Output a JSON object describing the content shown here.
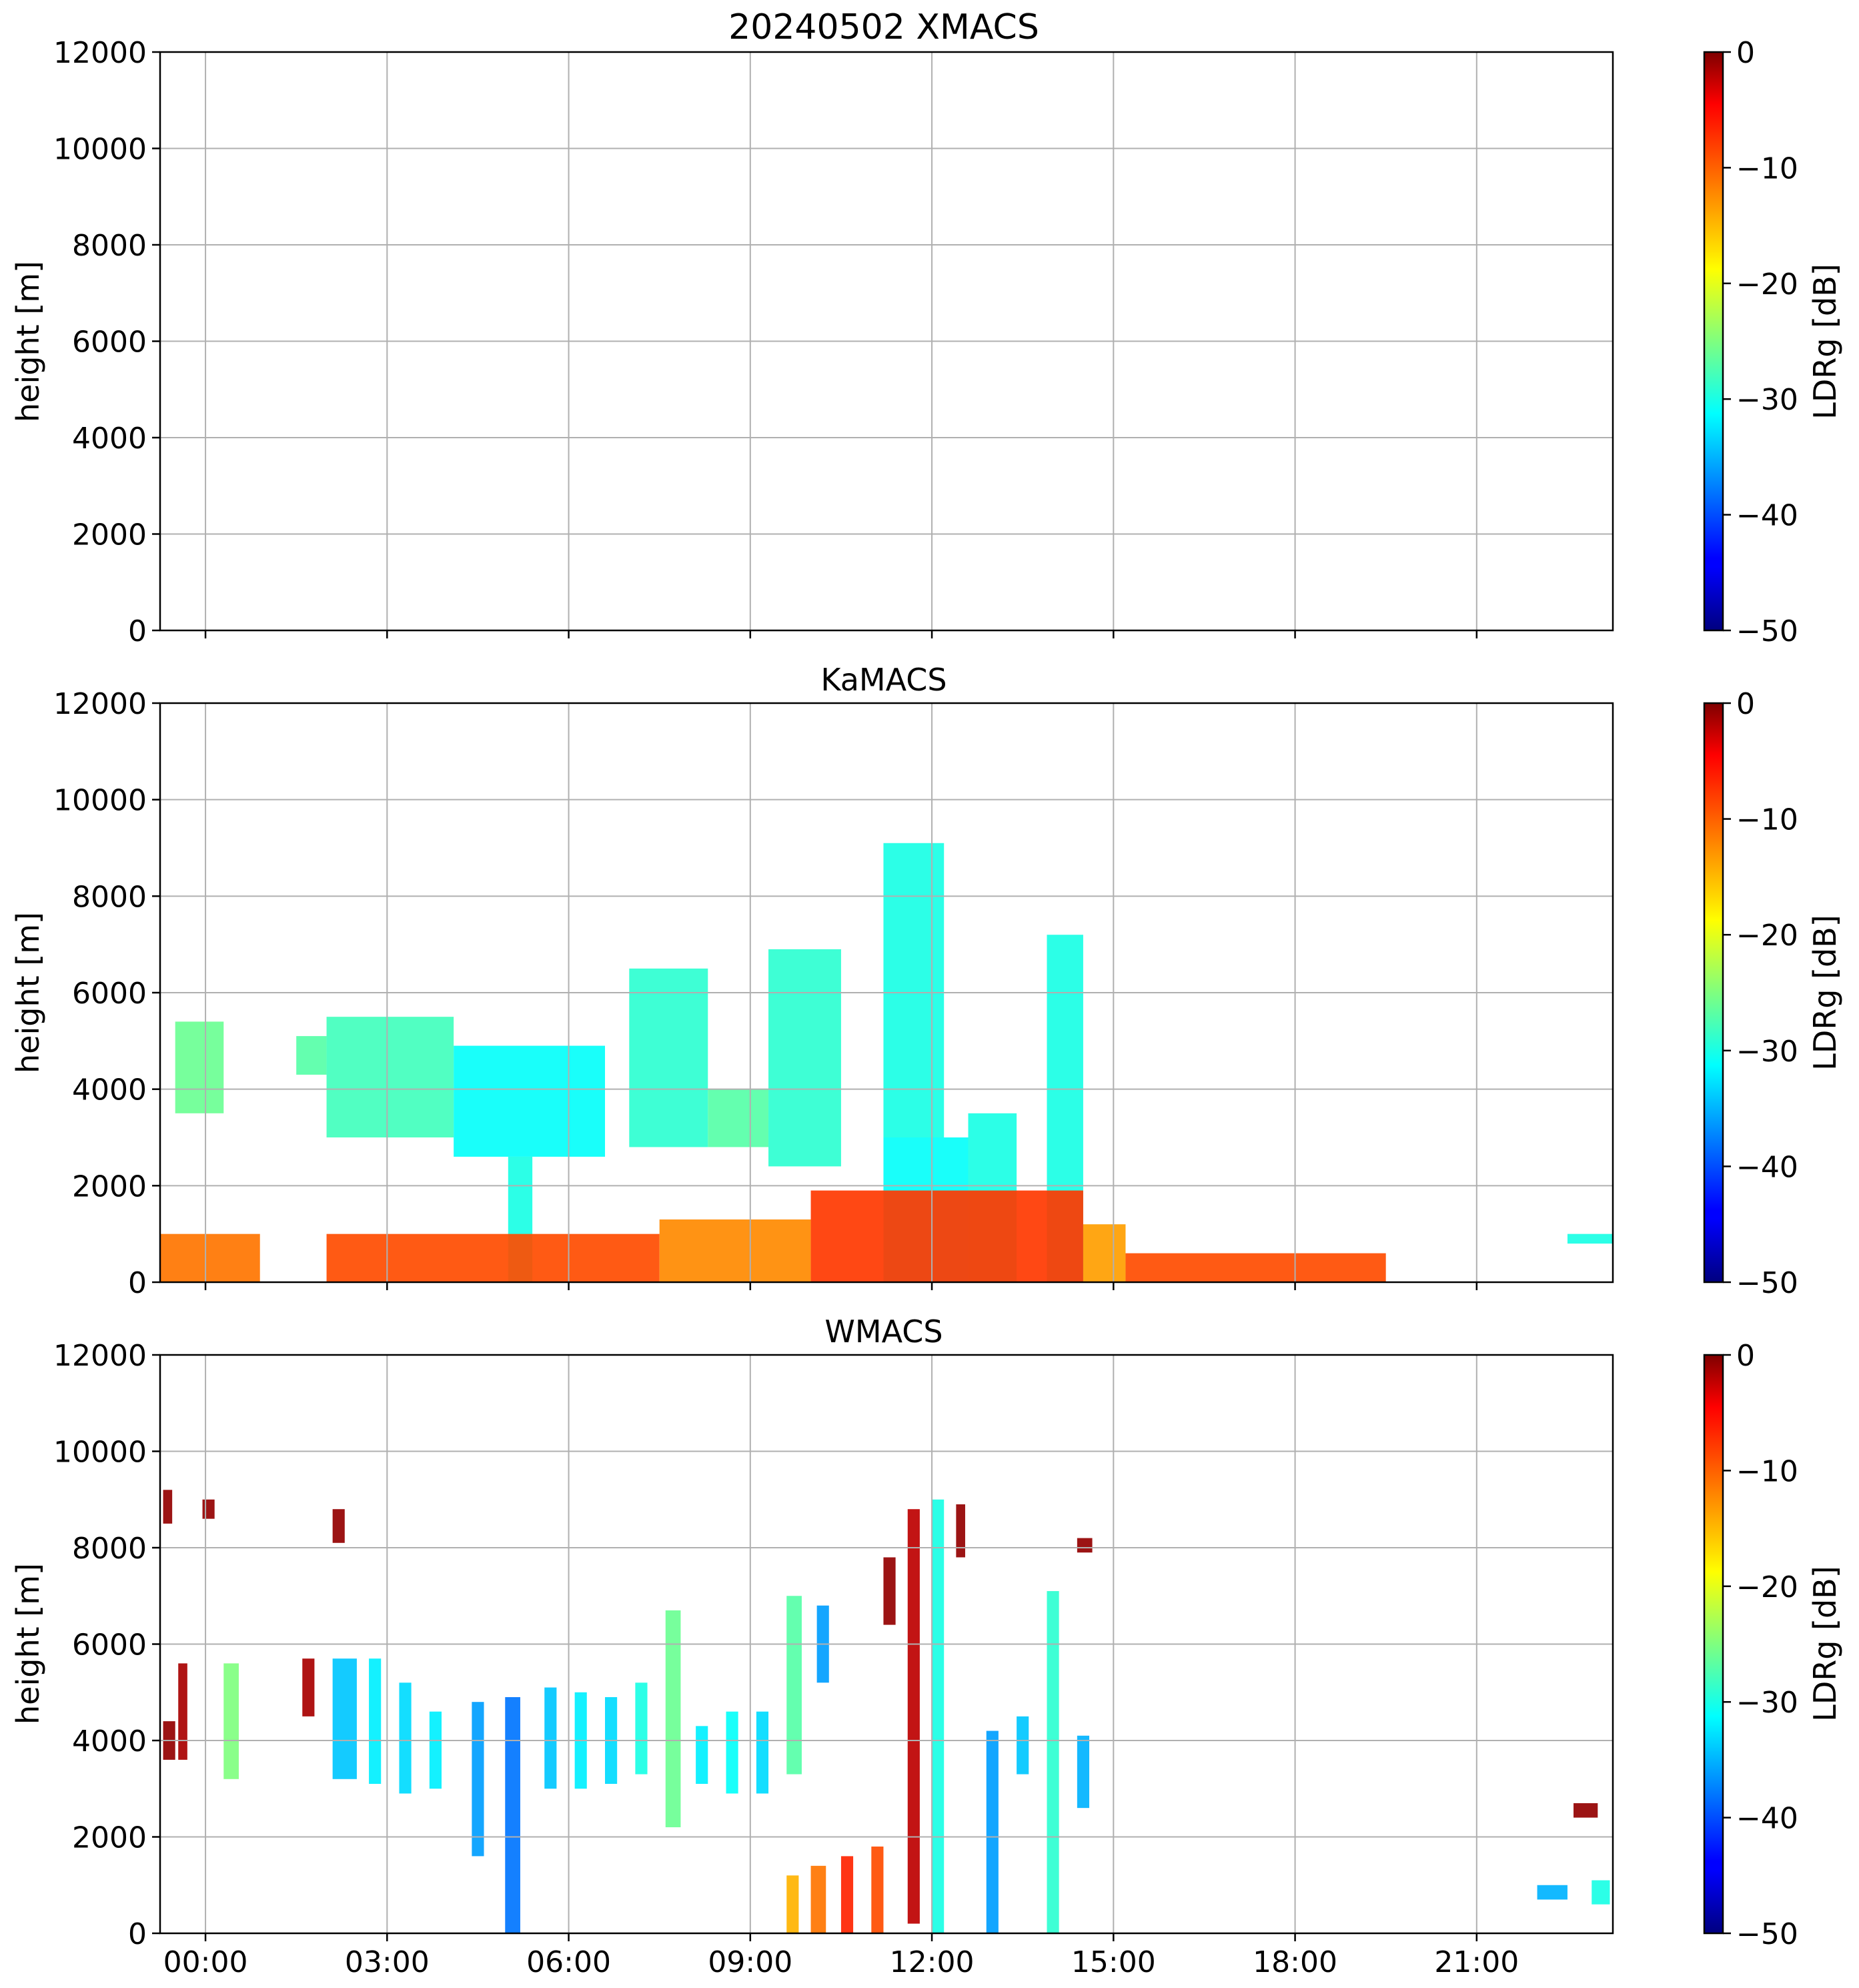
{
  "figure_title": "20240502 XMACS",
  "chart_data": [
    {
      "type": "heatmap",
      "title": "20240502 XMACS",
      "instrument": "XMACS",
      "xlabel": "",
      "ylabel": "height [m]",
      "x_ticks": [
        "00:00",
        "03:00",
        "06:00",
        "09:00",
        "12:00",
        "15:00",
        "18:00",
        "21:00"
      ],
      "x_ticks_visible": false,
      "x_range_hours": [
        -0.75,
        23.25
      ],
      "ylim": [
        0,
        12000
      ],
      "y_ticks": [
        0,
        2000,
        4000,
        6000,
        8000,
        10000,
        12000
      ],
      "y_tick_labels": [
        "0",
        "2000",
        "4000",
        "6000",
        "8000",
        "10000",
        "12000"
      ],
      "grid": true,
      "colorbar": {
        "label": "LDRg [dB]",
        "range": [
          -50,
          0
        ],
        "ticks": [
          0,
          -10,
          -20,
          -30,
          -40,
          -50
        ],
        "tick_labels": [
          "0",
          "−10",
          "−20",
          "−30",
          "−40",
          "−50"
        ],
        "colormap": "jet"
      },
      "cloud_regions": []
    },
    {
      "type": "heatmap",
      "title": "KaMACS",
      "instrument": "KaMACS",
      "xlabel": "",
      "ylabel": "height [m]",
      "x_ticks": [
        "00:00",
        "03:00",
        "06:00",
        "09:00",
        "12:00",
        "15:00",
        "18:00",
        "21:00"
      ],
      "x_ticks_visible": false,
      "x_range_hours": [
        -0.75,
        23.25
      ],
      "ylim": [
        0,
        12000
      ],
      "y_ticks": [
        0,
        2000,
        4000,
        6000,
        8000,
        10000,
        12000
      ],
      "y_tick_labels": [
        "0",
        "2000",
        "4000",
        "6000",
        "8000",
        "10000",
        "12000"
      ],
      "grid": true,
      "colorbar": {
        "label": "LDRg [dB]",
        "range": [
          -50,
          0
        ],
        "ticks": [
          0,
          -10,
          -20,
          -30,
          -40,
          -50
        ],
        "tick_labels": [
          "0",
          "−10",
          "−20",
          "−30",
          "−40",
          "−50"
        ],
        "colormap": "jet"
      },
      "cloud_regions": [
        {
          "t0": -0.5,
          "t1": 0.3,
          "h0": 3500,
          "h1": 5400,
          "ldr": -26
        },
        {
          "t0": 1.5,
          "t1": 2.0,
          "h0": 4300,
          "h1": 5100,
          "ldr": -27
        },
        {
          "t0": 2.0,
          "t1": 4.1,
          "h0": 3000,
          "h1": 5500,
          "ldr": -28
        },
        {
          "t0": 4.1,
          "t1": 6.6,
          "h0": 2600,
          "h1": 4900,
          "ldr": -31
        },
        {
          "t0": 5.0,
          "t1": 5.4,
          "h0": 0,
          "h1": 2600,
          "ldr": -30
        },
        {
          "t0": 7.0,
          "t1": 8.3,
          "h0": 2800,
          "h1": 6500,
          "ldr": -29
        },
        {
          "t0": 8.3,
          "t1": 9.3,
          "h0": 2800,
          "h1": 4000,
          "ldr": -27
        },
        {
          "t0": 9.3,
          "t1": 10.5,
          "h0": 2400,
          "h1": 6900,
          "ldr": -29
        },
        {
          "t0": 11.2,
          "t1": 12.2,
          "h0": 3000,
          "h1": 9100,
          "ldr": -30
        },
        {
          "t0": 11.2,
          "t1": 12.6,
          "h0": 0,
          "h1": 3000,
          "ldr": -31
        },
        {
          "t0": 12.6,
          "t1": 13.4,
          "h0": 0,
          "h1": 3500,
          "ldr": -30
        },
        {
          "t0": 13.9,
          "t1": 14.5,
          "h0": 0,
          "h1": 7200,
          "ldr": -30
        },
        {
          "t0": -0.75,
          "t1": 0.9,
          "h0": 0,
          "h1": 1000,
          "ldr": -12
        },
        {
          "t0": 2.0,
          "t1": 7.5,
          "h0": 0,
          "h1": 1000,
          "ldr": -10
        },
        {
          "t0": 7.5,
          "t1": 10.0,
          "h0": 0,
          "h1": 1300,
          "ldr": -13
        },
        {
          "t0": 10.0,
          "t1": 14.5,
          "h0": 0,
          "h1": 1900,
          "ldr": -9
        },
        {
          "t0": 14.5,
          "t1": 15.2,
          "h0": 0,
          "h1": 1200,
          "ldr": -14
        },
        {
          "t0": 15.2,
          "t1": 19.5,
          "h0": 0,
          "h1": 600,
          "ldr": -10
        },
        {
          "t0": 22.5,
          "t1": 23.25,
          "h0": 800,
          "h1": 1000,
          "ldr": -30
        }
      ]
    },
    {
      "type": "heatmap",
      "title": "WMACS",
      "instrument": "WMACS",
      "xlabel": "",
      "ylabel": "height [m]",
      "x_ticks": [
        "00:00",
        "03:00",
        "06:00",
        "09:00",
        "12:00",
        "15:00",
        "18:00",
        "21:00"
      ],
      "x_ticks_visible": true,
      "x_range_hours": [
        -0.75,
        23.25
      ],
      "ylim": [
        0,
        12000
      ],
      "y_ticks": [
        0,
        2000,
        4000,
        6000,
        8000,
        10000,
        12000
      ],
      "y_tick_labels": [
        "0",
        "2000",
        "4000",
        "6000",
        "8000",
        "10000",
        "12000"
      ],
      "grid": true,
      "colorbar": {
        "label": "LDRg [dB]",
        "range": [
          -50,
          0
        ],
        "ticks": [
          0,
          -10,
          -20,
          -30,
          -40,
          -50
        ],
        "tick_labels": [
          "0",
          "−10",
          "−20",
          "−30",
          "−40",
          "−50"
        ],
        "colormap": "jet"
      },
      "cloud_regions": [
        {
          "t0": -0.7,
          "t1": -0.5,
          "h0": 3600,
          "h1": 4400,
          "ldr": -1
        },
        {
          "t0": -0.7,
          "t1": -0.55,
          "h0": 8500,
          "h1": 9200,
          "ldr": -1
        },
        {
          "t0": -0.05,
          "t1": 0.15,
          "h0": 8600,
          "h1": 9000,
          "ldr": -1
        },
        {
          "t0": -0.45,
          "t1": -0.3,
          "h0": 3600,
          "h1": 5600,
          "ldr": -2
        },
        {
          "t0": 0.3,
          "t1": 0.55,
          "h0": 3200,
          "h1": 5600,
          "ldr": -25
        },
        {
          "t0": 1.6,
          "t1": 1.8,
          "h0": 4500,
          "h1": 5700,
          "ldr": -2
        },
        {
          "t0": 2.1,
          "t1": 2.5,
          "h0": 3200,
          "h1": 5700,
          "ldr": -34
        },
        {
          "t0": 2.1,
          "t1": 2.3,
          "h0": 8100,
          "h1": 8800,
          "ldr": -1
        },
        {
          "t0": 2.7,
          "t1": 2.9,
          "h0": 3100,
          "h1": 5700,
          "ldr": -32
        },
        {
          "t0": 3.2,
          "t1": 3.4,
          "h0": 2900,
          "h1": 5200,
          "ldr": -33
        },
        {
          "t0": 3.7,
          "t1": 3.9,
          "h0": 3000,
          "h1": 4600,
          "ldr": -32
        },
        {
          "t0": 4.4,
          "t1": 4.6,
          "h0": 1600,
          "h1": 4800,
          "ldr": -36
        },
        {
          "t0": 4.95,
          "t1": 5.2,
          "h0": 0,
          "h1": 4900,
          "ldr": -38
        },
        {
          "t0": 5.6,
          "t1": 5.8,
          "h0": 3000,
          "h1": 5100,
          "ldr": -34
        },
        {
          "t0": 6.1,
          "t1": 6.3,
          "h0": 3000,
          "h1": 5000,
          "ldr": -32
        },
        {
          "t0": 6.6,
          "t1": 6.8,
          "h0": 3100,
          "h1": 4900,
          "ldr": -33
        },
        {
          "t0": 7.1,
          "t1": 7.3,
          "h0": 3300,
          "h1": 5200,
          "ldr": -30
        },
        {
          "t0": 7.6,
          "t1": 7.85,
          "h0": 2200,
          "h1": 6700,
          "ldr": -26
        },
        {
          "t0": 8.1,
          "t1": 8.3,
          "h0": 3100,
          "h1": 4300,
          "ldr": -32
        },
        {
          "t0": 8.6,
          "t1": 8.8,
          "h0": 2900,
          "h1": 4600,
          "ldr": -31
        },
        {
          "t0": 9.1,
          "t1": 9.3,
          "h0": 2900,
          "h1": 4600,
          "ldr": -33
        },
        {
          "t0": 9.6,
          "t1": 9.85,
          "h0": 3300,
          "h1": 7000,
          "ldr": -27
        },
        {
          "t0": 10.1,
          "t1": 10.3,
          "h0": 5200,
          "h1": 6800,
          "ldr": -36
        },
        {
          "t0": 11.2,
          "t1": 11.4,
          "h0": 6400,
          "h1": 7800,
          "ldr": -1
        },
        {
          "t0": 11.6,
          "t1": 11.8,
          "h0": 200,
          "h1": 8800,
          "ldr": -3
        },
        {
          "t0": 12.0,
          "t1": 12.2,
          "h0": 0,
          "h1": 9000,
          "ldr": -30
        },
        {
          "t0": 12.4,
          "t1": 12.55,
          "h0": 7800,
          "h1": 8900,
          "ldr": -1
        },
        {
          "t0": 12.9,
          "t1": 13.1,
          "h0": 0,
          "h1": 4200,
          "ldr": -36
        },
        {
          "t0": 13.4,
          "t1": 13.6,
          "h0": 3300,
          "h1": 4500,
          "ldr": -34
        },
        {
          "t0": 13.9,
          "t1": 14.1,
          "h0": 0,
          "h1": 7100,
          "ldr": -29
        },
        {
          "t0": 14.4,
          "t1": 14.6,
          "h0": 2600,
          "h1": 4100,
          "ldr": -35
        },
        {
          "t0": 14.4,
          "t1": 14.65,
          "h0": 7900,
          "h1": 8200,
          "ldr": -1
        },
        {
          "t0": 22.0,
          "t1": 22.5,
          "h0": 700,
          "h1": 1000,
          "ldr": -35
        },
        {
          "t0": 22.6,
          "t1": 23.0,
          "h0": 2400,
          "h1": 2700,
          "ldr": -1
        },
        {
          "t0": 22.9,
          "t1": 23.2,
          "h0": 600,
          "h1": 1100,
          "ldr": -30
        },
        {
          "t0": 9.6,
          "t1": 9.8,
          "h0": 0,
          "h1": 1200,
          "ldr": -15
        },
        {
          "t0": 10.0,
          "t1": 10.25,
          "h0": 0,
          "h1": 1400,
          "ldr": -12
        },
        {
          "t0": 10.5,
          "t1": 10.7,
          "h0": 0,
          "h1": 1600,
          "ldr": -8
        },
        {
          "t0": 11.0,
          "t1": 11.2,
          "h0": 0,
          "h1": 1800,
          "ldr": -10
        }
      ]
    }
  ]
}
